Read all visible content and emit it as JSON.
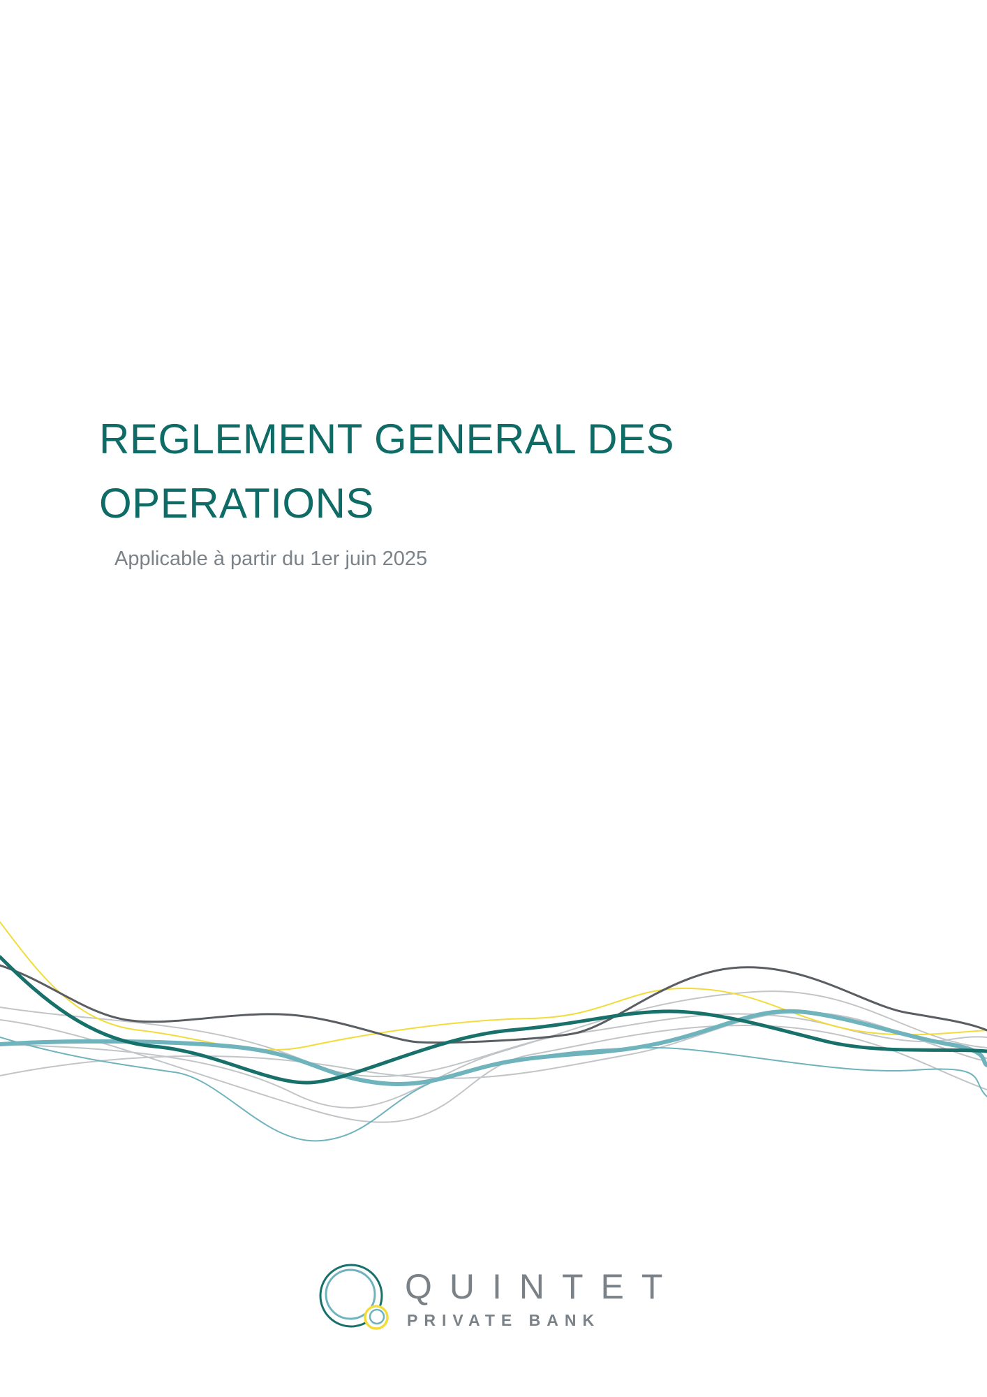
{
  "document": {
    "title_line1": "REGLEMENT GENERAL DES",
    "title_line2": "OPERATIONS",
    "subtitle": "Applicable à partir du 1er juin 2025"
  },
  "brand": {
    "name": "QUINTET",
    "tagline": "PRIVATE BANK"
  },
  "colors": {
    "title": "#0f6b65",
    "subtitle": "#7a8288",
    "wave_dark_teal": "#17706a",
    "wave_light_teal": "#6fb3bd",
    "wave_gray": "#bfc3c6",
    "wave_dark_gray": "#5a5d61",
    "wave_yellow": "#f2dc3a"
  },
  "icons": [
    "quintet-logo-icon"
  ]
}
